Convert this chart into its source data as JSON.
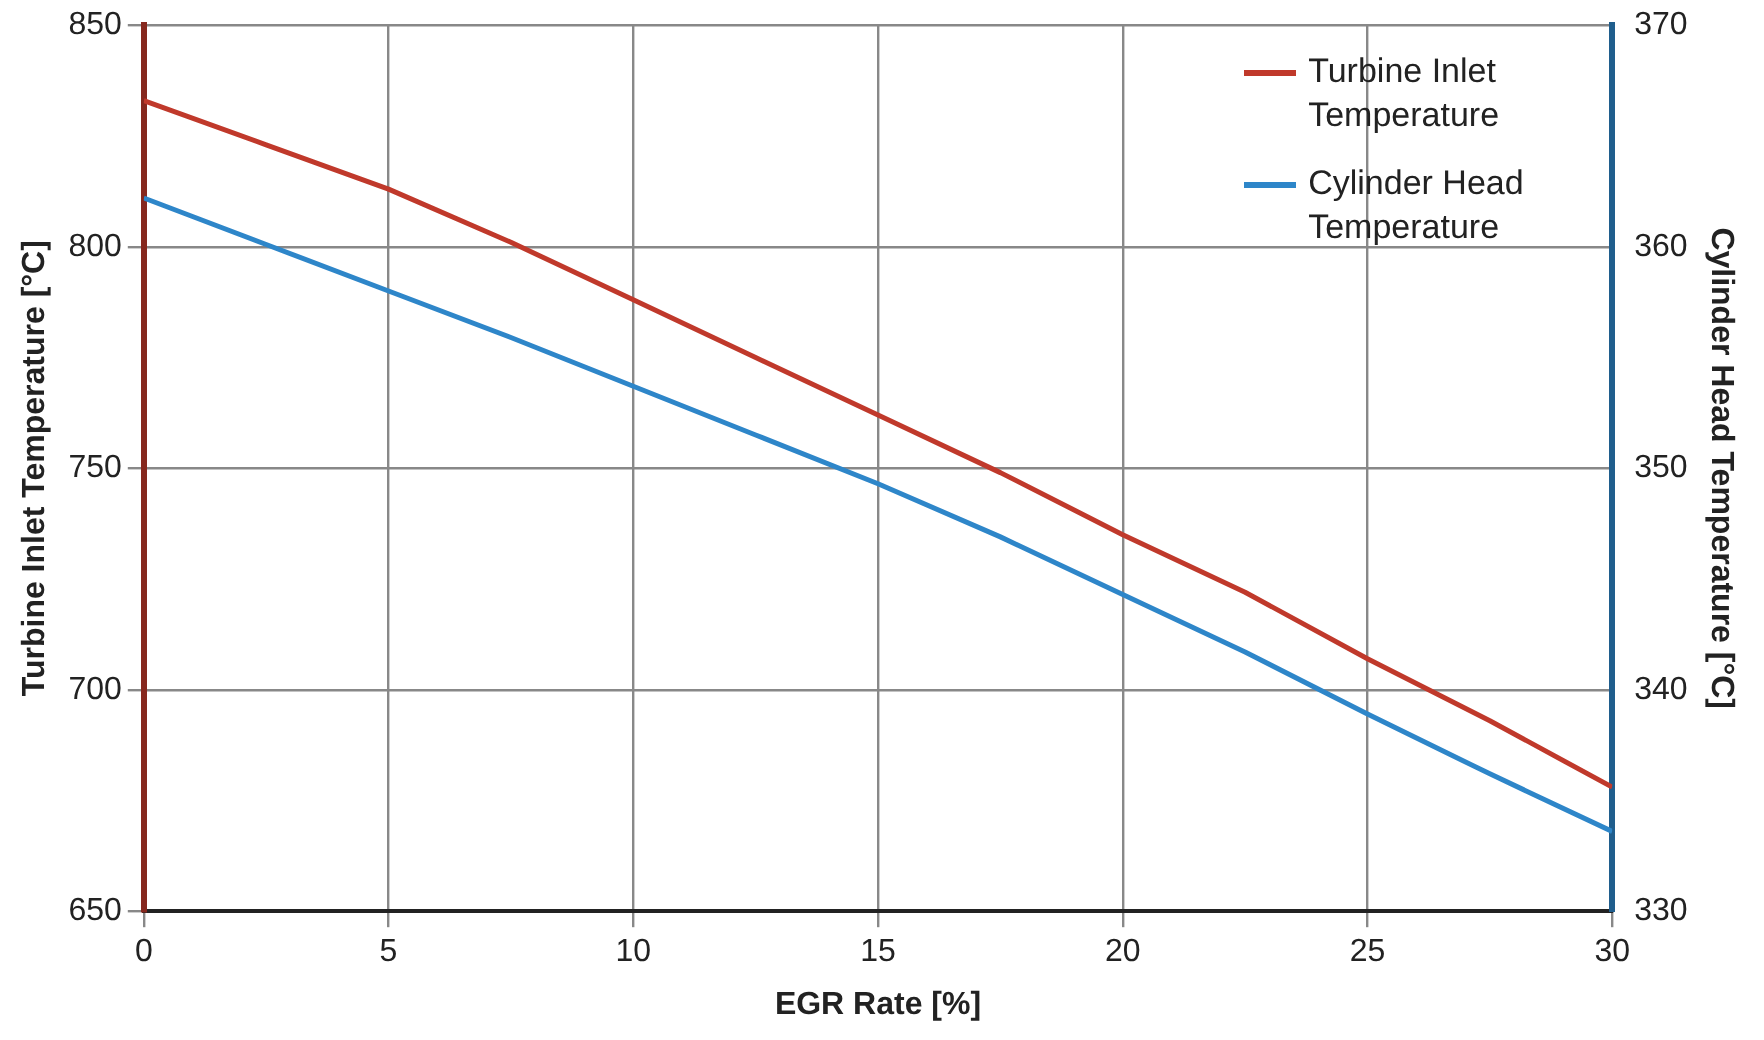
{
  "chart_data": {
    "type": "line",
    "xlabel": "EGR Rate [%]",
    "ylabel": "Turbine Inlet Temperature [°C]",
    "y2label": "Cylinder Head Temperature [°C]",
    "x": [
      0,
      2.5,
      5,
      7.5,
      10,
      12.5,
      15,
      17.5,
      20,
      22.5,
      25,
      27.5,
      30
    ],
    "series": [
      {
        "name": "Turbine Inlet Temperature",
        "color": "#c0392b",
        "values": [
          833,
          823,
          813,
          801,
          788,
          775,
          762,
          749,
          735,
          722,
          707,
          693,
          678
        ]
      },
      {
        "name": "Cylinder Head Temperature",
        "color": "#2e86c9",
        "axis": "y2",
        "values": [
          362.2,
          360.1,
          358.0,
          355.9,
          353.7,
          351.5,
          349.3,
          346.9,
          344.3,
          341.7,
          338.9,
          336.2,
          333.6
        ]
      }
    ],
    "xlim": [
      0,
      30
    ],
    "xticks": [
      0,
      5,
      10,
      15,
      20,
      25,
      30
    ],
    "ylim": [
      650,
      850
    ],
    "yticks": [
      650,
      700,
      750,
      800,
      850
    ],
    "y2lim": [
      330,
      370
    ],
    "y2ticks": [
      330,
      340,
      350,
      360,
      370
    ],
    "grid": true,
    "legend": "top right",
    "marker": "none",
    "line_style": "solid"
  }
}
